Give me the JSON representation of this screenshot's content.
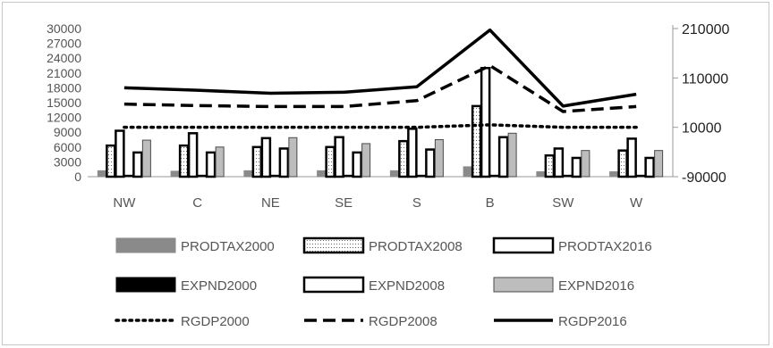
{
  "chart_data": {
    "type": "bar",
    "categories": [
      "NW",
      "C",
      "NE",
      "SE",
      "S",
      "B",
      "SW",
      "W"
    ],
    "left_axis": {
      "ylim": [
        0,
        30000
      ],
      "ticks": [
        "0",
        "3000",
        "6000",
        "9000",
        "12000",
        "15000",
        "18000",
        "21000",
        "24000",
        "27000",
        "30000"
      ]
    },
    "right_axis": {
      "ylim": [
        -90000,
        210000
      ],
      "ticks": [
        "-90000",
        "10000",
        "110000",
        "210000"
      ]
    },
    "bar_series": [
      {
        "name": "PRODTAX2000",
        "values": [
          1200,
          1100,
          1200,
          1200,
          1200,
          2000,
          1000,
          1000
        ],
        "fill": "#888888",
        "stroke": "#888888",
        "style": "solid-gray"
      },
      {
        "name": "PRODTAX2008",
        "values": [
          6300,
          6300,
          6000,
          6000,
          7200,
          14300,
          4300,
          5300
        ],
        "fill": "#ffffff",
        "stroke": "#000000",
        "style": "outlined-dotted"
      },
      {
        "name": "PRODTAX2016",
        "values": [
          9300,
          8800,
          7800,
          8000,
          9700,
          22000,
          5700,
          7700
        ],
        "fill": "#ffffff",
        "stroke": "#000000",
        "style": "outlined-white"
      },
      {
        "name": "EXPND2000",
        "values": [
          300,
          300,
          300,
          300,
          300,
          300,
          300,
          300
        ],
        "fill": "#000000",
        "stroke": "#000000",
        "style": "solid-black"
      },
      {
        "name": "EXPND2008",
        "values": [
          4900,
          4900,
          5700,
          4900,
          5500,
          8000,
          3800,
          3800
        ],
        "fill": "#ffffff",
        "stroke": "#000000",
        "style": "outlined-white"
      },
      {
        "name": "EXPND2016",
        "values": [
          7400,
          6000,
          7900,
          6700,
          7500,
          8800,
          5300,
          5300
        ],
        "fill": "#bbbbbb",
        "stroke": "#333333",
        "style": "light-gray"
      }
    ],
    "line_series": [
      {
        "name": "RGDP2000",
        "axis": "right",
        "values": [
          10000,
          10000,
          10000,
          10000,
          10000,
          15000,
          10000,
          10000
        ],
        "dash": "dotted"
      },
      {
        "name": "RGDP2008",
        "axis": "right",
        "values": [
          57000,
          54000,
          52000,
          52000,
          64000,
          135000,
          42000,
          52000
        ],
        "dash": "dashed"
      },
      {
        "name": "RGDP2016",
        "axis": "right",
        "values": [
          90000,
          85000,
          79000,
          81000,
          92000,
          207000,
          53000,
          77000
        ],
        "dash": "solid"
      }
    ],
    "legend": [
      {
        "label": "PRODTAX2000",
        "kind": "bar",
        "style": "solid-gray"
      },
      {
        "label": "PRODTAX2008",
        "kind": "bar",
        "style": "outlined-dotted"
      },
      {
        "label": "PRODTAX2016",
        "kind": "bar",
        "style": "outlined-white"
      },
      {
        "label": "EXPND2000",
        "kind": "bar",
        "style": "solid-black"
      },
      {
        "label": "EXPND2008",
        "kind": "bar",
        "style": "outlined-white"
      },
      {
        "label": "EXPND2016",
        "kind": "bar",
        "style": "light-gray"
      },
      {
        "label": "RGDP2000",
        "kind": "line",
        "style": "dotted"
      },
      {
        "label": "RGDP2008",
        "kind": "line",
        "style": "dashed"
      },
      {
        "label": "RGDP2016",
        "kind": "line",
        "style": "solid"
      }
    ],
    "legend_position": "bottom",
    "grid": false
  }
}
